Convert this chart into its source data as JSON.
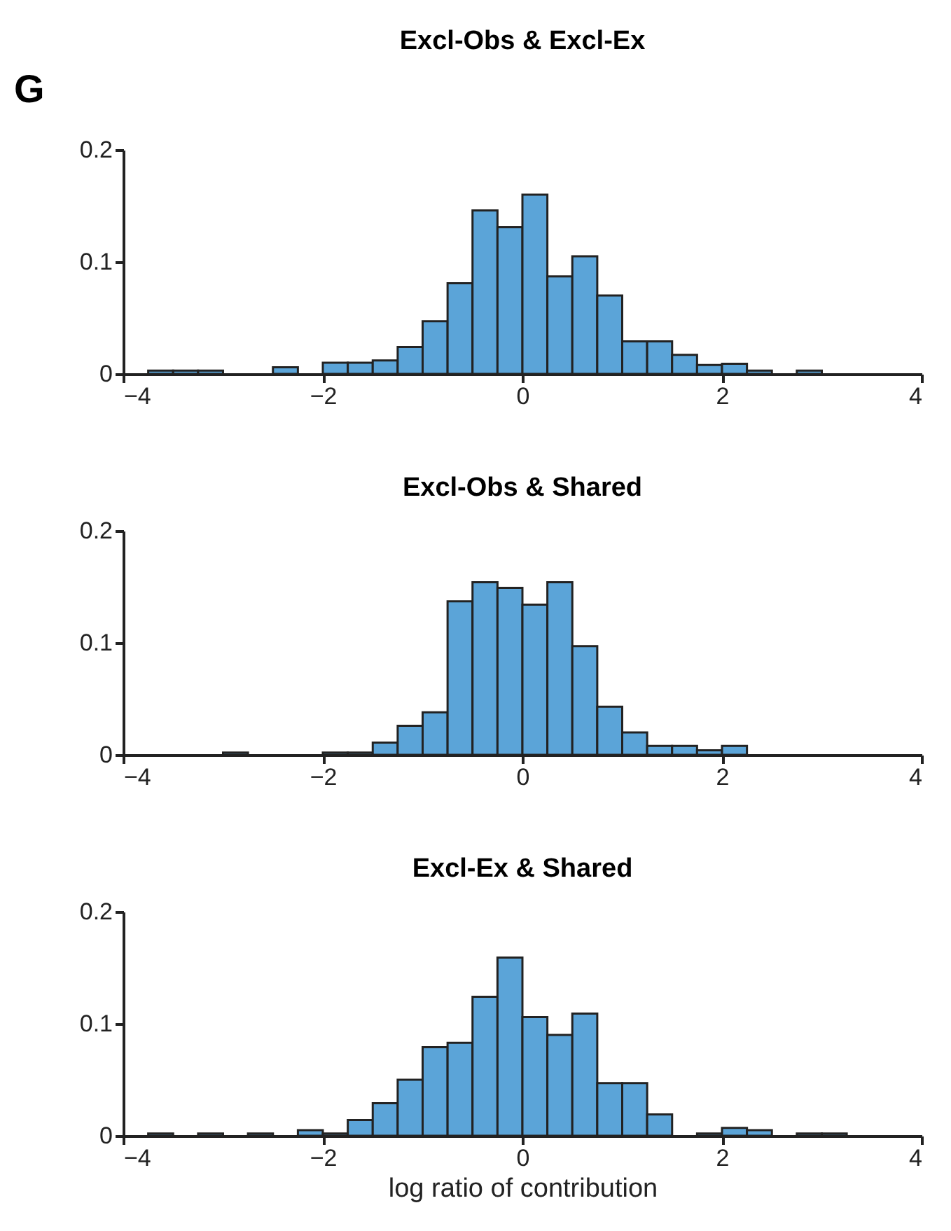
{
  "chart_data": [
    {
      "type": "histogram",
      "title": "Excl-Obs & Excl-Ex",
      "annotations": [
        "G"
      ],
      "color": "#5ba4d8",
      "grid": false,
      "bins": [
        -4,
        -3.75,
        -3.5,
        -3.25,
        -3,
        -2.75,
        -2.5,
        -2.25,
        -2,
        -1.75,
        -1.5,
        -1.25,
        -1,
        -0.75,
        -0.5,
        -0.25,
        0,
        0.25,
        0.5,
        0.75,
        1,
        1.25,
        1.5,
        1.75,
        2,
        2.25,
        2.5,
        2.75,
        3,
        3.25,
        3.5,
        3.75,
        4
      ],
      "values": [
        null,
        0.003,
        0.003,
        0.003,
        null,
        null,
        0.006,
        null,
        0.01,
        0.01,
        0.012,
        0.024,
        0.047,
        0.081,
        0.146,
        0.131,
        0.16,
        0.087,
        0.105,
        0.07,
        0.029,
        0.029,
        0.017,
        0.008,
        0.009,
        0.003,
        null,
        0.003,
        null,
        null,
        null,
        null
      ],
      "xlim": [
        -4,
        4
      ],
      "ylim": [
        0,
        0.2
      ],
      "xticks": [
        -4,
        -2,
        0,
        2,
        4
      ],
      "yticks": [
        0,
        0.1,
        0.2
      ]
    },
    {
      "type": "histogram",
      "title": "Excl-Obs & Shared",
      "color": "#5ba4d8",
      "grid": false,
      "bins": [
        -4,
        -3.75,
        -3.5,
        -3.25,
        -3,
        -2.75,
        -2.5,
        -2.25,
        -2,
        -1.75,
        -1.5,
        -1.25,
        -1,
        -0.75,
        -0.5,
        -0.25,
        0,
        0.25,
        0.5,
        0.75,
        1,
        1.25,
        1.5,
        1.75,
        2,
        2.25,
        2.5,
        2.75,
        3,
        3.25,
        3.5,
        3.75,
        4
      ],
      "values": [
        null,
        null,
        null,
        null,
        0.002,
        null,
        null,
        null,
        0.002,
        0.002,
        0.011,
        0.026,
        0.038,
        0.137,
        0.154,
        0.149,
        0.134,
        0.154,
        0.097,
        0.043,
        0.02,
        0.008,
        0.008,
        0.004,
        0.008,
        null,
        null,
        null,
        null,
        null,
        null,
        null
      ],
      "xlim": [
        -4,
        4
      ],
      "ylim": [
        0,
        0.2
      ],
      "xticks": [
        -4,
        -2,
        0,
        2,
        4
      ],
      "yticks": [
        0,
        0.1,
        0.2
      ]
    },
    {
      "type": "histogram",
      "title": "Excl-Ex & Shared",
      "xlabel": "log ratio of contribution",
      "color": "#5ba4d8",
      "grid": false,
      "bins": [
        -4,
        -3.75,
        -3.5,
        -3.25,
        -3,
        -2.75,
        -2.5,
        -2.25,
        -2,
        -1.75,
        -1.5,
        -1.25,
        -1,
        -0.75,
        -0.5,
        -0.25,
        0,
        0.25,
        0.5,
        0.75,
        1,
        1.25,
        1.5,
        1.75,
        2,
        2.25,
        2.5,
        2.75,
        3,
        3.25,
        3.5,
        3.75,
        4
      ],
      "values": [
        null,
        0.002,
        null,
        0.002,
        null,
        0.002,
        null,
        0.005,
        0.002,
        0.014,
        0.029,
        0.05,
        0.079,
        0.083,
        0.124,
        0.159,
        0.106,
        0.09,
        0.109,
        0.047,
        0.047,
        0.019,
        null,
        0.002,
        0.007,
        0.005,
        null,
        0.002,
        0.002,
        null,
        null,
        null
      ],
      "xlim": [
        -4,
        4
      ],
      "ylim": [
        0,
        0.2
      ],
      "xticks": [
        -4,
        -2,
        0,
        2,
        4
      ],
      "yticks": [
        0,
        0.1,
        0.2
      ]
    }
  ]
}
